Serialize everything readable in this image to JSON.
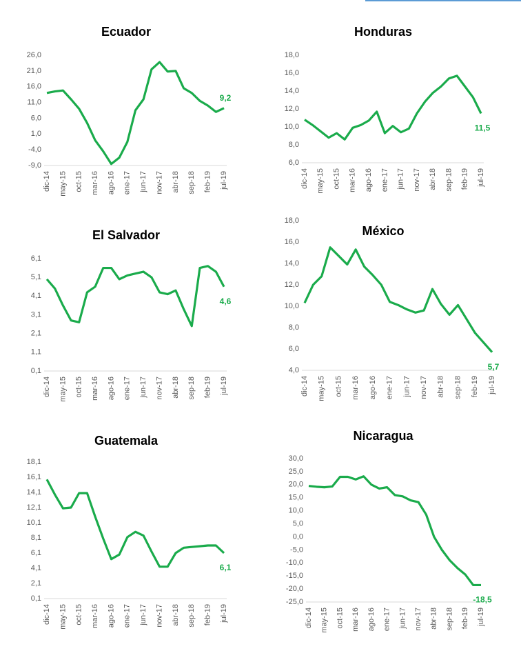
{
  "chart_data": [
    {
      "type": "line",
      "title": "Ecuador",
      "categories": [
        "dic-14",
        null,
        "may-15",
        null,
        "oct-15",
        null,
        "mar-16",
        null,
        "ago-16",
        null,
        "ene-17",
        null,
        "jun-17",
        null,
        "nov-17",
        null,
        "abr-18",
        null,
        "sep-18",
        null,
        "feb-19",
        null,
        "jul-19"
      ],
      "series": [
        {
          "name": "Ecuador",
          "color": "#1aab4b",
          "values": [
            14,
            14.5,
            14.8,
            12,
            9,
            4.5,
            -1,
            -4.5,
            -8.5,
            -6.5,
            -1.5,
            8.5,
            12,
            21.5,
            23.8,
            20.8,
            21,
            15.5,
            14,
            11.5,
            10,
            8,
            9.2
          ],
          "value_labels": [
            null,
            null,
            null,
            null,
            null,
            null,
            null,
            null,
            null,
            null,
            null,
            null,
            null,
            null,
            null,
            null,
            null,
            null,
            null,
            null,
            null,
            null,
            "9,2"
          ]
        }
      ],
      "ylim": [
        -9,
        26
      ],
      "yticks": [
        {
          "value": -9,
          "label": "-9,0"
        },
        {
          "value": -4,
          "label": "-4,0"
        },
        {
          "value": 1,
          "label": "1,0"
        },
        {
          "value": 6,
          "label": "6,0"
        },
        {
          "value": 11,
          "label": "11,0"
        },
        {
          "value": 16,
          "label": "16,0"
        },
        {
          "value": 21,
          "label": "21,0"
        },
        {
          "value": 26,
          "label": "26,0"
        }
      ]
    },
    {
      "type": "line",
      "title": "Honduras",
      "categories": [
        "dic-14",
        null,
        "may-15",
        null,
        "oct-15",
        null,
        "mar-16",
        null,
        "ago-16",
        null,
        "ene-17",
        null,
        "jun-17",
        null,
        "nov-17",
        null,
        "abr-18",
        null,
        "sep-18",
        null,
        "feb-19",
        null,
        "jul-19"
      ],
      "series": [
        {
          "name": "Honduras",
          "color": "#1aab4b",
          "values": [
            10.8,
            10.2,
            9.5,
            8.8,
            9.3,
            8.6,
            9.9,
            10.2,
            10.7,
            11.7,
            9.3,
            10.1,
            9.4,
            9.8,
            11.5,
            12.8,
            13.8,
            14.5,
            15.4,
            15.7,
            14.5,
            13.3,
            11.5
          ],
          "value_labels": [
            null,
            null,
            null,
            null,
            null,
            null,
            null,
            null,
            null,
            null,
            null,
            null,
            null,
            null,
            null,
            null,
            null,
            null,
            null,
            null,
            null,
            null,
            "11,5"
          ]
        }
      ],
      "ylim": [
        6,
        18
      ],
      "yticks": [
        {
          "value": 6,
          "label": "6,0"
        },
        {
          "value": 8,
          "label": "8,0"
        },
        {
          "value": 10,
          "label": "10,0"
        },
        {
          "value": 12,
          "label": "12,0"
        },
        {
          "value": 14,
          "label": "14,0"
        },
        {
          "value": 16,
          "label": "16,0"
        },
        {
          "value": 18,
          "label": "18,0"
        }
      ]
    },
    {
      "type": "line",
      "title": "El Salvador",
      "categories": [
        "dic-14",
        null,
        "may-15",
        null,
        "oct-15",
        null,
        "mar-16",
        null,
        "ago-16",
        null,
        "ene-17",
        null,
        "jun-17",
        null,
        "nov-17",
        null,
        "abr-18",
        null,
        "sep-18",
        null,
        "feb-19",
        null,
        "jul-19"
      ],
      "series": [
        {
          "name": "El Salvador",
          "color": "#1aab4b",
          "values": [
            5.0,
            4.5,
            3.6,
            2.8,
            2.7,
            4.3,
            4.6,
            5.6,
            5.6,
            5.0,
            5.2,
            5.3,
            5.4,
            5.1,
            4.3,
            4.2,
            4.4,
            3.4,
            2.5,
            5.6,
            5.7,
            5.4,
            4.6
          ],
          "value_labels": [
            null,
            null,
            null,
            null,
            null,
            null,
            null,
            null,
            null,
            null,
            null,
            null,
            null,
            null,
            null,
            null,
            null,
            null,
            null,
            null,
            null,
            null,
            "4,6"
          ]
        }
      ],
      "ylim": [
        0.1,
        6.1
      ],
      "yticks": [
        {
          "value": 0.1,
          "label": "0,1"
        },
        {
          "value": 1.1,
          "label": "1,1"
        },
        {
          "value": 2.1,
          "label": "2,1"
        },
        {
          "value": 3.1,
          "label": "3,1"
        },
        {
          "value": 4.1,
          "label": "4,1"
        },
        {
          "value": 5.1,
          "label": "5,1"
        },
        {
          "value": 6.1,
          "label": "6,1"
        }
      ]
    },
    {
      "type": "line",
      "title": "México",
      "categories": [
        "dic-14",
        null,
        "may-15",
        null,
        "oct-15",
        null,
        "mar-16",
        null,
        "ago-16",
        null,
        "ene-17",
        null,
        "jun-17",
        null,
        "nov-17",
        null,
        "abr-18",
        null,
        "sep-18",
        null,
        "feb-19",
        null,
        "jul-19"
      ],
      "series": [
        {
          "name": "México",
          "color": "#1aab4b",
          "values": [
            10.3,
            12,
            12.8,
            15.5,
            14.7,
            13.9,
            15.3,
            13.7,
            12.9,
            12,
            10.4,
            10.1,
            9.7,
            9.4,
            9.6,
            11.6,
            10.2,
            9.2,
            10.1,
            8.8,
            7.5,
            6.6,
            5.7
          ],
          "value_labels": [
            null,
            null,
            null,
            null,
            null,
            null,
            null,
            null,
            null,
            null,
            null,
            null,
            null,
            null,
            null,
            null,
            null,
            null,
            null,
            null,
            null,
            null,
            "5,7"
          ]
        }
      ],
      "ylim": [
        4,
        18
      ],
      "yticks": [
        {
          "value": 4,
          "label": "4,0"
        },
        {
          "value": 6,
          "label": "6,0"
        },
        {
          "value": 8,
          "label": "8,0"
        },
        {
          "value": 10,
          "label": "10,0"
        },
        {
          "value": 12,
          "label": "12,0"
        },
        {
          "value": 14,
          "label": "14,0"
        },
        {
          "value": 16,
          "label": "16,0"
        },
        {
          "value": 18,
          "label": "18,0"
        }
      ]
    },
    {
      "type": "line",
      "title": "Guatemala",
      "categories": [
        "dic-14",
        null,
        "may-15",
        null,
        "oct-15",
        null,
        "mar-16",
        null,
        "ago-16",
        null,
        "ene-17",
        null,
        "jun-17",
        null,
        "nov-17",
        null,
        "abr-18",
        null,
        "sep-18",
        null,
        "feb-19",
        null,
        "jul-19"
      ],
      "series": [
        {
          "name": "Guatemala",
          "color": "#1aab4b",
          "values": [
            15.8,
            13.8,
            12,
            12.1,
            14,
            14,
            10.9,
            8,
            5.3,
            5.9,
            8.2,
            8.9,
            8.4,
            6.3,
            4.3,
            4.3,
            6.1,
            6.8,
            6.9,
            7.0,
            7.1,
            7.1,
            6.1
          ],
          "value_labels": [
            null,
            null,
            null,
            null,
            null,
            null,
            null,
            null,
            null,
            null,
            null,
            null,
            null,
            null,
            null,
            null,
            null,
            null,
            null,
            null,
            null,
            null,
            "6,1"
          ]
        }
      ],
      "ylim": [
        0.1,
        18.1
      ],
      "yticks": [
        {
          "value": 0.1,
          "label": "0,1"
        },
        {
          "value": 2.1,
          "label": "2,1"
        },
        {
          "value": 4.1,
          "label": "4,1"
        },
        {
          "value": 6.1,
          "label": "6,1"
        },
        {
          "value": 8.1,
          "label": "8,1"
        },
        {
          "value": 10.1,
          "label": "10,1"
        },
        {
          "value": 12.1,
          "label": "12,1"
        },
        {
          "value": 14.1,
          "label": "14,1"
        },
        {
          "value": 16.1,
          "label": "16,1"
        },
        {
          "value": 18.1,
          "label": "18,1"
        }
      ]
    },
    {
      "type": "line",
      "title": "Nicaragua",
      "categories": [
        "dic-14",
        null,
        "may-15",
        null,
        "oct-15",
        null,
        "mar-16",
        null,
        "ago-16",
        null,
        "ene-17",
        null,
        "jun-17",
        null,
        "nov-17",
        null,
        "abr-18",
        null,
        "sep-18",
        null,
        "feb-19",
        null,
        "jul-19"
      ],
      "series": [
        {
          "name": "Nicaragua",
          "color": "#1aab4b",
          "values": [
            19.5,
            19.2,
            19,
            19.3,
            23,
            23,
            22,
            23.2,
            20,
            18.5,
            19,
            16,
            15.5,
            14,
            13.3,
            8.5,
            0,
            -5,
            -9,
            -12,
            -14.5,
            -18.5,
            -18.5
          ],
          "value_labels": [
            null,
            null,
            null,
            null,
            null,
            null,
            null,
            null,
            null,
            null,
            null,
            null,
            null,
            null,
            null,
            null,
            null,
            null,
            null,
            null,
            null,
            null,
            "-18,5"
          ]
        }
      ],
      "ylim": [
        -25,
        30
      ],
      "yticks": [
        {
          "value": -25,
          "label": "-25,0"
        },
        {
          "value": -20,
          "label": "-20,0"
        },
        {
          "value": -15,
          "label": "-15,0"
        },
        {
          "value": -10,
          "label": "-10,0"
        },
        {
          "value": -5,
          "label": "-5,0"
        },
        {
          "value": 0,
          "label": "0,0"
        },
        {
          "value": 5,
          "label": "5,0"
        },
        {
          "value": 10,
          "label": "10,0"
        },
        {
          "value": 15,
          "label": "15,0"
        },
        {
          "value": 20,
          "label": "20,0"
        },
        {
          "value": 25,
          "label": "25,0"
        },
        {
          "value": 30,
          "label": "30,0"
        }
      ]
    }
  ]
}
